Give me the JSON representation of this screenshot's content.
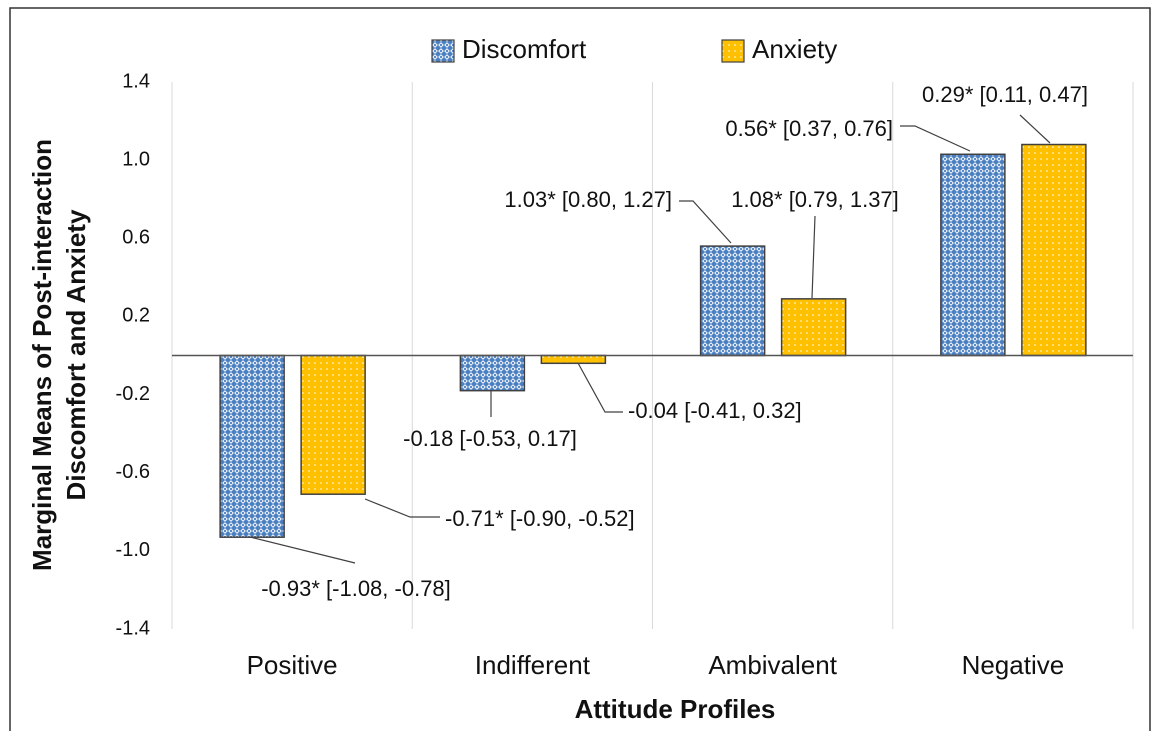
{
  "chart_data": {
    "type": "bar",
    "categories": [
      "Positive",
      "Indifferent",
      "Ambivalent",
      "Negative"
    ],
    "series": [
      {
        "name": "Discomfort",
        "color": "#4a7fc1",
        "values": [
          -0.93,
          -0.18,
          0.56,
          1.03
        ]
      },
      {
        "name": "Anxiety",
        "color": "#ffc000",
        "values": [
          -0.71,
          -0.04,
          0.29,
          1.08
        ]
      }
    ],
    "annotations": [
      "-0.93* [-1.08, -0.78]",
      "-0.71* [-0.90, -0.52]",
      "-0.18 [-0.53, 0.17]",
      "-0.04 [-0.41, 0.32]",
      "1.03* [0.80, 1.27]",
      "1.08* [0.79, 1.37]",
      "0.56* [0.37, 0.76]",
      "0.29* [0.11, 0.47]"
    ],
    "xlabel": "Attitude Profiles",
    "ylabel": [
      "Marginal Means of Post-interaction",
      "Discomfort and Anxiety"
    ],
    "ylim": [
      -1.4,
      1.4
    ],
    "yticks": [
      -1.4,
      {
        "value": -1,
        "label": "-1.0"
      },
      -0.6,
      -0.2,
      0.2,
      0.6,
      {
        "value": 1,
        "label": "1.0"
      },
      1.4
    ],
    "grid": false,
    "legend": "top"
  }
}
